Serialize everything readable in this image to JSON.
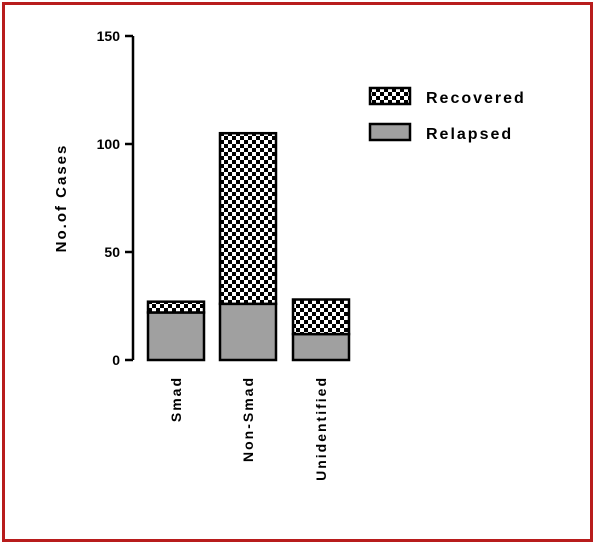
{
  "chart_data": {
    "type": "bar",
    "stacked": true,
    "categories": [
      "Smad",
      "Non-Smad",
      "Unidentified"
    ],
    "series": [
      {
        "name": "Relapsed",
        "values": [
          22,
          26,
          12
        ],
        "color": "#a0a0a0",
        "pattern": "solid"
      },
      {
        "name": "Recovered",
        "values": [
          5,
          79,
          16
        ],
        "color": "#000000",
        "pattern": "checkerboard"
      }
    ],
    "title": "",
    "xlabel": "",
    "ylabel": "No.of Cases",
    "ylim": [
      0,
      150
    ],
    "yticks": [
      0,
      50,
      100,
      150
    ],
    "legend": "top-right",
    "grid": false,
    "frame_color": "#b81c1c"
  }
}
